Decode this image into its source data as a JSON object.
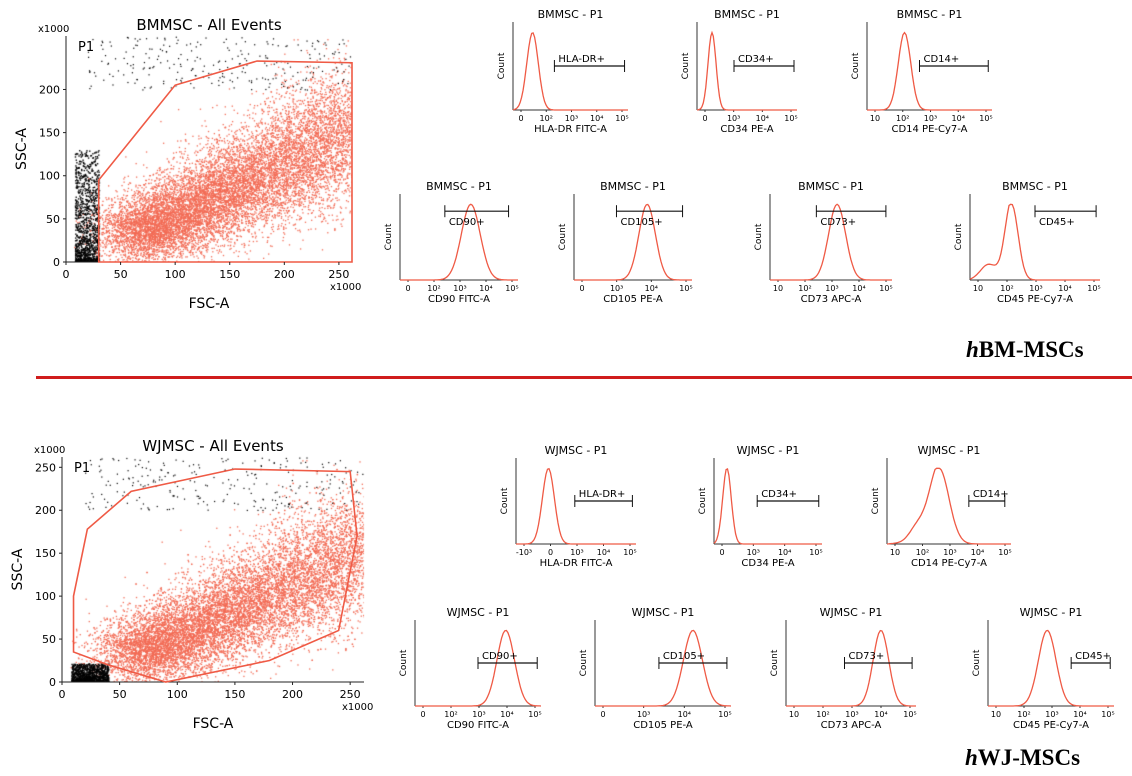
{
  "figure": {
    "sections": [
      {
        "prefix": "h",
        "rest": "BM-MSCs"
      },
      {
        "prefix": "h",
        "rest": "WJ-MSCs"
      }
    ],
    "colors": {
      "event_red": "#f26b55",
      "gate_red": "#ef5a45",
      "divider": "#d01c1c",
      "debris": "#000000"
    }
  },
  "chart_data": [
    {
      "type": "scatter",
      "title": "BMMSC - All Events",
      "xlabel": "FSC-A",
      "ylabel": "SSC-A",
      "x_multiplier": "x1000",
      "y_multiplier": "x1000",
      "xticks": [
        "0",
        "50",
        "100",
        "150",
        "200",
        "250"
      ],
      "yticks": [
        "0",
        "50",
        "100",
        "150",
        "200"
      ],
      "xlim": [
        0,
        262
      ],
      "ylim": [
        0,
        262
      ],
      "gate": {
        "name": "P1",
        "vertices": [
          [
            30,
            0
          ],
          [
            30,
            95
          ],
          [
            100,
            205
          ],
          [
            175,
            233
          ],
          [
            262,
            231
          ],
          [
            262,
            0
          ]
        ]
      },
      "main_population_center": [
        100,
        50
      ],
      "debris_region": {
        "x": [
          8,
          30
        ],
        "y": [
          0,
          130
        ]
      }
    },
    {
      "type": "scatter",
      "title": "WJMSC - All Events",
      "xlabel": "FSC-A",
      "ylabel": "SSC-A",
      "x_multiplier": "x1000",
      "y_multiplier": "x1000",
      "xticks": [
        "0",
        "50",
        "100",
        "150",
        "200",
        "250"
      ],
      "yticks": [
        "0",
        "50",
        "100",
        "150",
        "200",
        "250"
      ],
      "xlim": [
        0,
        262
      ],
      "ylim": [
        0,
        262
      ],
      "gate": {
        "name": "P1",
        "vertices": [
          [
            10,
            35
          ],
          [
            10,
            100
          ],
          [
            22,
            178
          ],
          [
            60,
            222
          ],
          [
            150,
            248
          ],
          [
            250,
            245
          ],
          [
            256,
            170
          ],
          [
            240,
            60
          ],
          [
            180,
            25
          ],
          [
            90,
            0
          ],
          [
            40,
            20
          ]
        ]
      },
      "main_population_center": [
        100,
        50
      ],
      "debris_region": {
        "x": [
          8,
          40
        ],
        "y": [
          0,
          22
        ]
      }
    },
    {
      "type": "area",
      "title": "BMMSC - P1",
      "xlabel": "HLA-DR FITC-A",
      "ylabel": "Count",
      "xticks": [
        "0",
        "10²",
        "10³",
        "10⁴",
        "10⁵"
      ],
      "peak": 0.17,
      "width": 0.05,
      "gate": {
        "label": "HLA-DR+",
        "x_from": 0.36,
        "x_to": 0.97,
        "label_pos": "above"
      }
    },
    {
      "type": "area",
      "title": "BMMSC - P1",
      "xlabel": "CD34 PE-A",
      "ylabel": "Count",
      "xticks": [
        "0",
        "10³",
        "10⁴",
        "10⁵"
      ],
      "peak": 0.15,
      "width": 0.04,
      "gate": {
        "label": "CD34+",
        "x_from": 0.37,
        "x_to": 0.97,
        "label_pos": "above"
      }
    },
    {
      "type": "area",
      "title": "BMMSC - P1",
      "xlabel": "CD14 PE-Cy7-A",
      "ylabel": "Count",
      "xticks": [
        "10",
        "10²",
        "10³",
        "10⁴",
        "10⁵"
      ],
      "peak": 0.3,
      "width": 0.05,
      "gate": {
        "label": "CD14+",
        "x_from": 0.42,
        "x_to": 0.97,
        "label_pos": "above"
      }
    },
    {
      "type": "area",
      "title": "BMMSC - P1",
      "xlabel": "CD90 FITC-A",
      "ylabel": "Count",
      "xticks": [
        "0",
        "10²",
        "10³",
        "10⁴",
        "10⁵"
      ],
      "peak": 0.6,
      "width": 0.08,
      "gate": {
        "label": "CD90+",
        "x_from": 0.38,
        "x_to": 0.92,
        "label_pos": "below"
      }
    },
    {
      "type": "area",
      "title": "BMMSC - P1",
      "xlabel": "CD105 PE-A",
      "ylabel": "Count",
      "xticks": [
        "0",
        "10³",
        "10⁴",
        "10⁵"
      ],
      "peak": 0.62,
      "width": 0.07,
      "gate": {
        "label": "CD105+",
        "x_from": 0.36,
        "x_to": 0.92,
        "label_pos": "below"
      }
    },
    {
      "type": "area",
      "title": "BMMSC - P1",
      "xlabel": "CD73 APC-A",
      "ylabel": "Count",
      "xticks": [
        "10",
        "10²",
        "10³",
        "10⁴",
        "10⁵"
      ],
      "peak": 0.55,
      "width": 0.07,
      "gate": {
        "label": "CD73+",
        "x_from": 0.38,
        "x_to": 0.95,
        "label_pos": "below"
      }
    },
    {
      "type": "area",
      "title": "BMMSC - P1",
      "xlabel": "CD45 PE-Cy7-A",
      "ylabel": "Count",
      "xticks": [
        "10",
        "10²",
        "10³",
        "10⁴",
        "10⁵"
      ],
      "peak": 0.32,
      "width": 0.05,
      "tail": true,
      "gate": {
        "label": "CD45+",
        "x_from": 0.5,
        "x_to": 0.97,
        "label_pos": "below"
      }
    },
    {
      "type": "area",
      "title": "WJMSC  - P1",
      "xlabel": "HLA-DR FITC-A",
      "ylabel": "Count",
      "xticks": [
        "-10³",
        "0",
        "10³",
        "10⁴",
        "10⁵"
      ],
      "peak": 0.27,
      "width": 0.05,
      "gate": {
        "label": "HLA-DR+",
        "x_from": 0.49,
        "x_to": 0.97,
        "label_pos": "above"
      }
    },
    {
      "type": "area",
      "title": "WJMSC  - P1",
      "xlabel": "CD34 PE-A",
      "ylabel": "Count",
      "xticks": [
        "0",
        "10³",
        "10⁴",
        "10⁵"
      ],
      "peak": 0.12,
      "width": 0.04,
      "gate": {
        "label": "CD34+",
        "x_from": 0.4,
        "x_to": 0.97,
        "label_pos": "above"
      }
    },
    {
      "type": "area",
      "title": "WJMSC   - P1",
      "xlabel": "CD14 PE-Cy7-A",
      "ylabel": "Count",
      "xticks": [
        "10",
        "10²",
        "10³",
        "10⁴",
        "10⁵"
      ],
      "peak": 0.42,
      "width": 0.08,
      "tail": true,
      "gate": {
        "label": "CD14+",
        "x_from": 0.66,
        "x_to": 0.95,
        "label_pos": "above"
      }
    },
    {
      "type": "area",
      "title": "WJMSC - P1",
      "xlabel": "CD90 FITC-A",
      "ylabel": "Count",
      "xticks": [
        "0",
        "10²",
        "10³",
        "10⁴",
        "10⁵"
      ],
      "peak": 0.72,
      "width": 0.07,
      "gate": {
        "label": "CD90+",
        "x_from": 0.5,
        "x_to": 0.97,
        "label_pos": "above"
      }
    },
    {
      "type": "area",
      "title": "WJMSC - P1",
      "xlabel": "CD105 PE-A",
      "ylabel": "Count",
      "xticks": [
        "0",
        "10³",
        "10⁴",
        "10⁵"
      ],
      "peak": 0.72,
      "width": 0.07,
      "gate": {
        "label": "CD105+",
        "x_from": 0.47,
        "x_to": 0.97,
        "label_pos": "above"
      }
    },
    {
      "type": "area",
      "title": "WJMSC - P1",
      "xlabel": "CD73 APC-A",
      "ylabel": "Count",
      "xticks": [
        "10",
        "10²",
        "10³",
        "10⁴",
        "10⁵"
      ],
      "peak": 0.73,
      "width": 0.06,
      "gate": {
        "label": "CD73+",
        "x_from": 0.45,
        "x_to": 0.97,
        "label_pos": "above"
      }
    },
    {
      "type": "area",
      "title": "WJMSC - P1",
      "xlabel": "CD45 PE-Cy7-A",
      "ylabel": "Count",
      "xticks": [
        "10",
        "10²",
        "10³",
        "10⁴",
        "10⁵"
      ],
      "peak": 0.47,
      "width": 0.07,
      "gate": {
        "label": "CD45+",
        "x_from": 0.66,
        "x_to": 0.97,
        "label_pos": "above"
      }
    }
  ]
}
